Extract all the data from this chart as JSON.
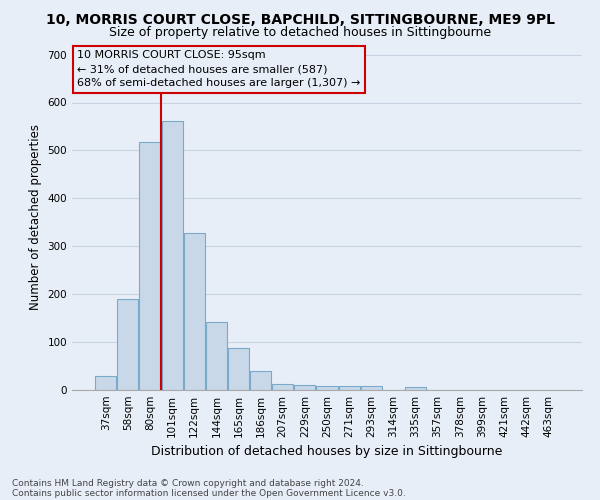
{
  "title": "10, MORRIS COURT CLOSE, BAPCHILD, SITTINGBOURNE, ME9 9PL",
  "subtitle": "Size of property relative to detached houses in Sittingbourne",
  "xlabel": "Distribution of detached houses by size in Sittingbourne",
  "ylabel": "Number of detached properties",
  "footnote1": "Contains HM Land Registry data © Crown copyright and database right 2024.",
  "footnote2": "Contains public sector information licensed under the Open Government Licence v3.0.",
  "bar_color": "#c8d8e8",
  "bar_edge_color": "#7aaaca",
  "grid_color": "#c8d4e4",
  "background_color": "#e8eef8",
  "categories": [
    "37sqm",
    "58sqm",
    "80sqm",
    "101sqm",
    "122sqm",
    "144sqm",
    "165sqm",
    "186sqm",
    "207sqm",
    "229sqm",
    "250sqm",
    "271sqm",
    "293sqm",
    "314sqm",
    "335sqm",
    "357sqm",
    "378sqm",
    "399sqm",
    "421sqm",
    "442sqm",
    "463sqm"
  ],
  "values": [
    30,
    190,
    518,
    562,
    328,
    142,
    87,
    40,
    13,
    10,
    8,
    8,
    9,
    0,
    7,
    0,
    0,
    0,
    0,
    0,
    0
  ],
  "ylim": [
    0,
    720
  ],
  "yticks": [
    0,
    100,
    200,
    300,
    400,
    500,
    600,
    700
  ],
  "red_line_x": 2.5,
  "annotation_title": "10 MORRIS COURT CLOSE: 95sqm",
  "annotation_line1": "← 31% of detached houses are smaller (587)",
  "annotation_line2": "68% of semi-detached houses are larger (1,307) →",
  "red_line_color": "#cc0000",
  "title_fontsize": 10,
  "subtitle_fontsize": 9,
  "ylabel_fontsize": 8.5,
  "xlabel_fontsize": 9,
  "tick_fontsize": 7.5,
  "footnote_fontsize": 6.5,
  "annotation_fontsize": 8
}
